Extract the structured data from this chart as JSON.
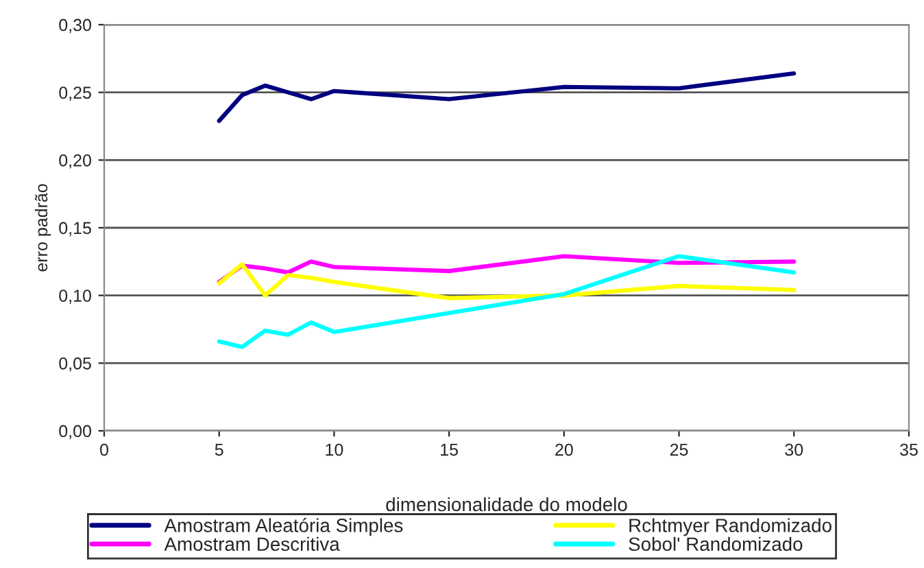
{
  "chart_data": {
    "type": "line",
    "xlabel": "dimensionalidade do modelo",
    "ylabel": "erro padrão",
    "x": [
      5,
      6,
      7,
      8,
      9,
      10,
      15,
      20,
      25,
      30
    ],
    "series": [
      {
        "name": "Amostram Aleatória Simples",
        "color": "#000080",
        "values": [
          0.229,
          0.248,
          0.255,
          0.25,
          0.245,
          0.251,
          0.245,
          0.254,
          0.253,
          0.264
        ]
      },
      {
        "name": "Amostram Descritiva",
        "color": "#ff00ff",
        "values": [
          0.11,
          0.122,
          0.12,
          0.117,
          0.125,
          0.121,
          0.118,
          0.129,
          0.124,
          0.125
        ]
      },
      {
        "name": "Rchtmyer Randomizado",
        "color": "#ffff00",
        "values": [
          0.109,
          0.123,
          0.1,
          0.115,
          0.113,
          0.11,
          0.098,
          0.1,
          0.107,
          0.104
        ]
      },
      {
        "name": "Sobol' Randomizado",
        "color": "#00ffff",
        "values": [
          0.066,
          0.062,
          0.074,
          0.071,
          0.08,
          0.073,
          0.087,
          0.101,
          0.129,
          0.117
        ]
      }
    ],
    "xlim": [
      0,
      35
    ],
    "xticks": [
      0,
      5,
      10,
      15,
      20,
      25,
      30,
      35
    ],
    "ylim": [
      0,
      0.3
    ],
    "yticks": [
      {
        "value": 0,
        "label": "0,00"
      },
      {
        "value": 0.05,
        "label": "0,05"
      },
      {
        "value": 0.1,
        "label": "0,10"
      },
      {
        "value": 0.15,
        "label": "0,15"
      },
      {
        "value": 0.2,
        "label": "0,20"
      },
      {
        "value": 0.25,
        "label": "0,25"
      },
      {
        "value": 0.3,
        "label": "0,30"
      }
    ],
    "grid": "y",
    "legend": "bottom",
    "marker": "none",
    "line_style": "solid"
  }
}
